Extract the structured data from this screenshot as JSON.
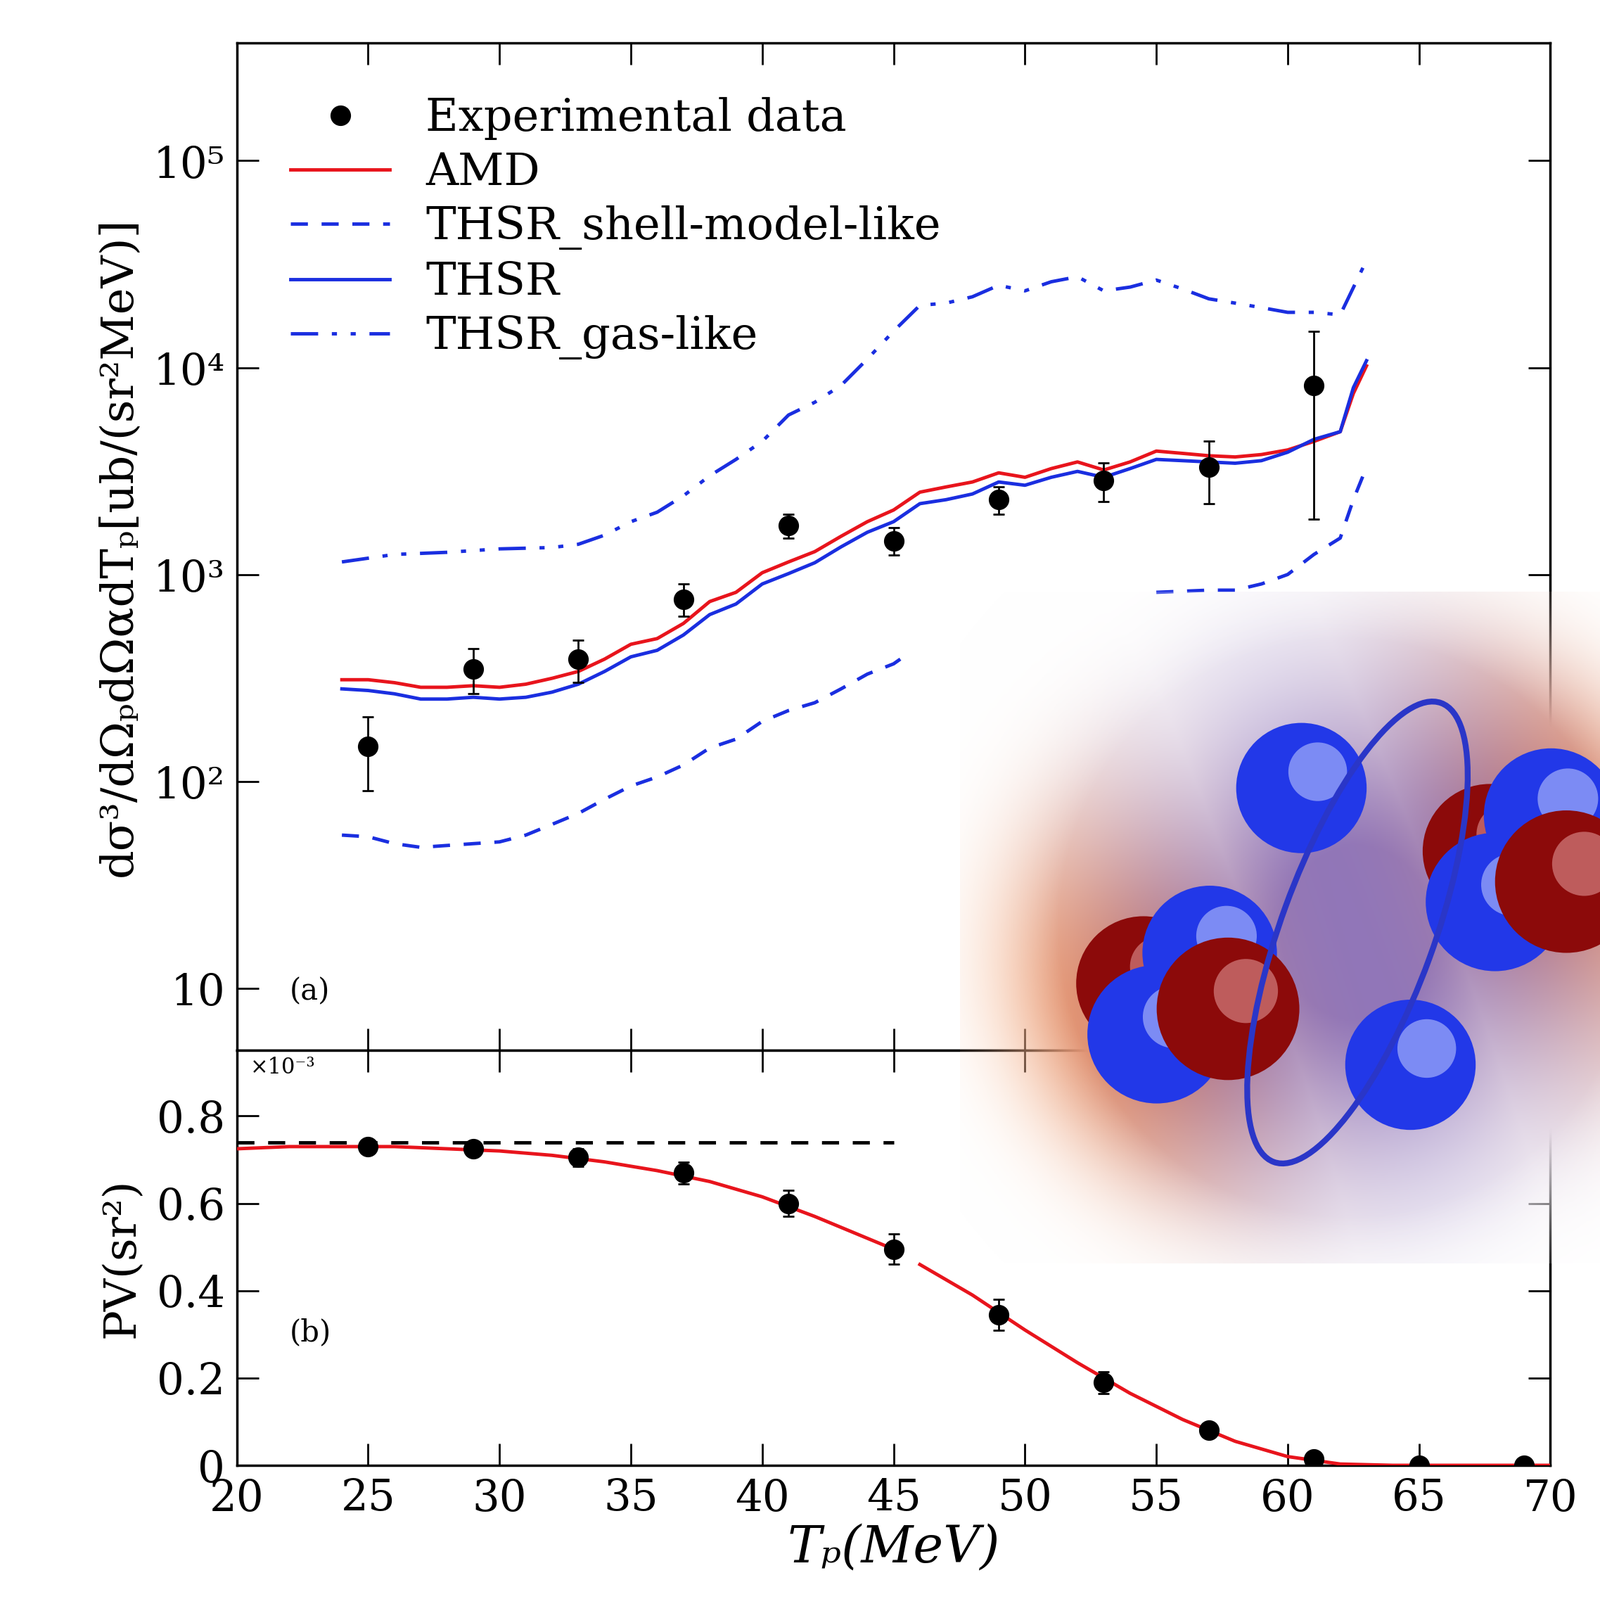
{
  "chart_data": [
    {
      "type": "line",
      "y_label": "dσ³/dΩₚdΩαdTₚ[ub/(sr²MeV)]",
      "annotations": [
        "(a)"
      ],
      "log": "y",
      "tick_labels": "y",
      "legend": "upper left",
      "xlim": [
        20,
        70
      ],
      "xticks": [
        20,
        25,
        30,
        35,
        40,
        45,
        50,
        55,
        60,
        65,
        70
      ],
      "ylim": [
        5,
        370000
      ],
      "yticks": [
        10,
        {
          "value": 100,
          "label": "10²"
        },
        {
          "value": 1000,
          "label": "10³"
        },
        {
          "value": 10000,
          "label": "10⁴"
        },
        {
          "value": 100000,
          "label": "10⁵"
        }
      ],
      "series": [
        {
          "name": "Experimental data",
          "type": "scatter",
          "color": "#000000",
          "marker": "o",
          "x": [
            25,
            29,
            33,
            37,
            41,
            45,
            49,
            53,
            57,
            61
          ],
          "values": [
            148,
            350,
            390,
            760,
            1720,
            1450,
            2300,
            2850,
            3300,
            8200
          ],
          "lower": [
            90,
            265,
            300,
            630,
            1500,
            1240,
            1950,
            2250,
            2200,
            1850
          ],
          "upper": [
            205,
            440,
            480,
            900,
            1950,
            1680,
            2650,
            3450,
            4400,
            15000
          ]
        },
        {
          "name": "AMD",
          "type": "line",
          "color": "#e8141c",
          "line_style": "solid",
          "x": [
            24,
            25,
            26,
            27,
            28,
            29,
            30,
            31,
            32,
            33,
            34,
            35,
            36,
            37,
            38,
            39,
            40,
            41,
            42,
            43,
            44,
            45,
            46,
            47,
            48,
            49,
            50,
            51,
            52,
            53,
            54,
            55,
            56,
            57,
            58,
            59,
            60,
            61,
            62,
            62.5,
            63
          ],
          "values": [
            310,
            310,
            300,
            285,
            285,
            290,
            285,
            295,
            315,
            340,
            390,
            460,
            490,
            580,
            740,
            820,
            1020,
            1150,
            1290,
            1530,
            1800,
            2050,
            2500,
            2650,
            2800,
            3100,
            2950,
            3250,
            3500,
            3200,
            3500,
            3950,
            3850,
            3750,
            3700,
            3800,
            4000,
            4400,
            4900,
            7500,
            10200
          ]
        },
        {
          "name": "THSR_shell-model-like",
          "type": "line",
          "color": "#1a2ee0",
          "line_style": "dashed",
          "x": [
            24,
            25,
            26,
            27,
            28,
            29,
            30,
            31,
            32,
            33,
            34,
            35,
            36,
            37,
            38,
            39,
            40,
            41,
            42,
            43,
            44,
            45,
            45.5,
            50,
            55,
            56,
            57,
            58,
            59,
            60,
            61,
            62,
            62.5,
            63
          ],
          "values": [
            55,
            54,
            50,
            48,
            49,
            50,
            51,
            55,
            62,
            70,
            82,
            95,
            105,
            120,
            145,
            160,
            195,
            220,
            240,
            280,
            330,
            370,
            410,
            null,
            820,
            830,
            840,
            840,
            900,
            1000,
            1250,
            1500,
            2300,
            3300
          ]
        },
        {
          "name": "THSR",
          "type": "line",
          "color": "#1a2ee0",
          "line_style": "solid",
          "x": [
            24,
            25,
            26,
            27,
            28,
            29,
            30,
            31,
            32,
            33,
            34,
            35,
            36,
            37,
            38,
            39,
            40,
            41,
            42,
            43,
            44,
            45,
            46,
            47,
            48,
            49,
            50,
            51,
            52,
            53,
            54,
            55,
            56,
            57,
            58,
            59,
            60,
            61,
            62,
            62.5,
            63
          ],
          "values": [
            280,
            275,
            265,
            250,
            250,
            255,
            250,
            255,
            270,
            295,
            340,
            400,
            430,
            510,
            640,
            720,
            900,
            1010,
            1140,
            1360,
            1600,
            1800,
            2200,
            2300,
            2450,
            2800,
            2700,
            2950,
            3150,
            2950,
            3250,
            3600,
            3550,
            3500,
            3450,
            3550,
            3900,
            4500,
            4900,
            8000,
            10800
          ]
        },
        {
          "name": "THSR_gas-like",
          "type": "line",
          "color": "#1a2ee0",
          "line_style": "dashdotdot",
          "x": [
            24,
            26,
            28,
            30,
            32,
            33,
            34,
            35,
            36,
            37,
            38,
            39,
            40,
            41,
            42,
            43,
            44,
            45,
            46,
            47,
            48,
            49,
            50,
            51,
            52,
            53,
            54,
            55,
            56,
            57,
            58,
            59,
            60,
            61,
            62,
            63
          ],
          "values": [
            1150,
            1250,
            1280,
            1330,
            1350,
            1400,
            1550,
            1800,
            2000,
            2400,
            3000,
            3600,
            4400,
            5900,
            6800,
            8200,
            11000,
            15000,
            20000,
            20500,
            22000,
            25000,
            23500,
            26000,
            27500,
            23500,
            24500,
            26500,
            24000,
            21500,
            20500,
            19500,
            18500,
            18500,
            18000,
            33000
          ]
        }
      ]
    },
    {
      "type": "line",
      "x_label": "Tₚ(MeV)",
      "y_label": "PV(sr²)",
      "annotations": [
        "(b)",
        "×10⁻³"
      ],
      "xlim": [
        20,
        70
      ],
      "xticks": [
        20,
        25,
        30,
        35,
        40,
        45,
        50,
        55,
        60,
        65,
        70
      ],
      "ylim": [
        0,
        0.95
      ],
      "yticks": [
        0,
        0.2,
        0.4,
        0.6,
        0.8
      ],
      "series": [
        {
          "type": "line",
          "color": "#000000",
          "line_style": "dashed",
          "x": [
            20,
            45
          ],
          "values": [
            0.74,
            0.74
          ]
        },
        {
          "type": "line",
          "color": "#e8141c",
          "line_style": "solid",
          "x": [
            20,
            22,
            24,
            26,
            28,
            30,
            32,
            34,
            36,
            38,
            40,
            42,
            44,
            45,
            45.5,
            46,
            48,
            50,
            52,
            54,
            56,
            58,
            60,
            62,
            64,
            66,
            70
          ],
          "values": [
            0.725,
            0.73,
            0.73,
            0.73,
            0.725,
            0.72,
            0.71,
            0.695,
            0.675,
            0.65,
            0.615,
            0.57,
            0.52,
            0.495,
            null,
            0.46,
            0.39,
            0.31,
            0.235,
            0.165,
            0.105,
            0.055,
            0.02,
            0.003,
            0,
            0,
            0
          ]
        },
        {
          "type": "scatter",
          "color": "#000000",
          "marker": "o",
          "x": [
            25,
            29,
            33,
            37,
            41,
            45,
            49,
            53,
            57,
            61,
            65,
            69
          ],
          "values": [
            0.73,
            0.725,
            0.705,
            0.67,
            0.6,
            0.495,
            0.345,
            0.19,
            0.08,
            0.015,
            0.0,
            0.0
          ],
          "lower": [
            0.715,
            0.71,
            0.685,
            0.645,
            0.57,
            0.46,
            0.31,
            0.165,
            0.07,
            0.008,
            0.0,
            0.0
          ],
          "upper": [
            0.745,
            0.74,
            0.725,
            0.695,
            0.63,
            0.53,
            0.38,
            0.215,
            0.09,
            0.022,
            0.0,
            0.0
          ]
        }
      ]
    }
  ]
}
